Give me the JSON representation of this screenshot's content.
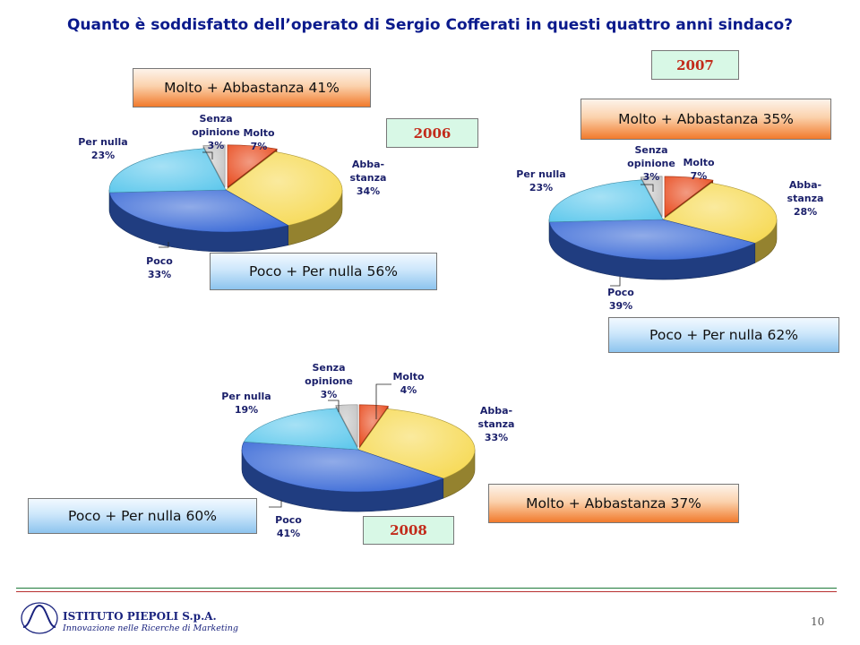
{
  "title": "Quanto è soddisfatto dell’operato di Sergio Cofferati in questi quattro anni sindaco?",
  "chart_data": [
    {
      "type": "pie",
      "year": "2006",
      "slices": [
        {
          "key": "molto",
          "lines": [
            "Molto",
            "7%"
          ],
          "value": 7,
          "color": "#e8481a"
        },
        {
          "key": "abba",
          "lines": [
            "Abba-",
            "stanza",
            "34%"
          ],
          "value": 34,
          "color": "#f6d84e"
        },
        {
          "key": "poco",
          "lines": [
            "Poco",
            "33%"
          ],
          "value": 33,
          "color": "#3566d6"
        },
        {
          "key": "pernulla",
          "lines": [
            "Per nulla",
            "23%"
          ],
          "value": 23,
          "color": "#5ec8ec"
        },
        {
          "key": "senza",
          "lines": [
            "Senza",
            "opinione",
            "3%"
          ],
          "value": 3,
          "color": "#c2c2c2"
        }
      ],
      "boxes": {
        "positive": "Molto + Abbastanza 41%",
        "negative": "Poco + Per nulla 56%"
      }
    },
    {
      "type": "pie",
      "year": "2007",
      "slices": [
        {
          "key": "molto",
          "lines": [
            "Molto",
            "7%"
          ],
          "value": 7,
          "color": "#e8481a"
        },
        {
          "key": "abba",
          "lines": [
            "Abba-",
            "stanza",
            "28%"
          ],
          "value": 28,
          "color": "#f6d84e"
        },
        {
          "key": "poco",
          "lines": [
            "Poco",
            "39%"
          ],
          "value": 39,
          "color": "#3566d6"
        },
        {
          "key": "pernulla",
          "lines": [
            "Per nulla",
            "23%"
          ],
          "value": 23,
          "color": "#5ec8ec"
        },
        {
          "key": "senza",
          "lines": [
            "Senza",
            "opinione",
            "3%"
          ],
          "value": 3,
          "color": "#c2c2c2"
        }
      ],
      "boxes": {
        "positive": "Molto + Abbastanza 35%",
        "negative": "Poco + Per nulla 62%"
      }
    },
    {
      "type": "pie",
      "year": "2008",
      "slices": [
        {
          "key": "molto",
          "lines": [
            "Molto",
            "4%"
          ],
          "value": 4,
          "color": "#e8481a"
        },
        {
          "key": "abba",
          "lines": [
            "Abba-",
            "stanza",
            "33%"
          ],
          "value": 33,
          "color": "#f6d84e"
        },
        {
          "key": "poco",
          "lines": [
            "Poco",
            "41%"
          ],
          "value": 41,
          "color": "#3566d6"
        },
        {
          "key": "pernulla",
          "lines": [
            "Per nulla",
            "19%"
          ],
          "value": 19,
          "color": "#5ec8ec"
        },
        {
          "key": "senza",
          "lines": [
            "Senza",
            "opinione",
            "3%"
          ],
          "value": 3,
          "color": "#c2c2c2"
        }
      ],
      "boxes": {
        "positive": "Molto + Abbastanza 37%",
        "negative": "Poco + Per nulla 60%"
      }
    }
  ],
  "footer": {
    "company": "ISTITUTO PIEPOLI  S.p.A.",
    "tagline": "Innovazione nelle Ricerche di Marketing",
    "page": "10"
  }
}
